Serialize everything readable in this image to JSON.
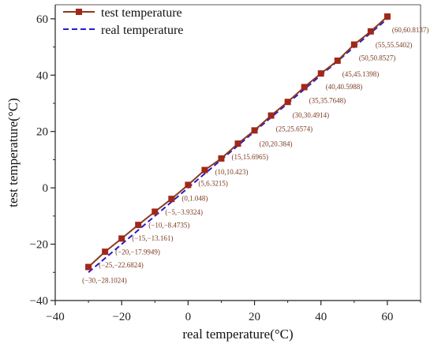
{
  "chart_data": {
    "type": "line",
    "xlabel": "real temperature(°C)",
    "ylabel": "test temperature(°C)",
    "xlim": [
      -40,
      70
    ],
    "ylim": [
      -40,
      65
    ],
    "xticks": [
      -40,
      -20,
      0,
      20,
      40,
      60
    ],
    "yticks": [
      -40,
      -20,
      0,
      20,
      40,
      60
    ],
    "grid": false,
    "legend_position": "top-left",
    "series": [
      {
        "name": "test temperature",
        "style": "solid-line-square-markers",
        "color": "#8b3a1a",
        "marker_color": "#a02818",
        "x": [
          -30,
          -25,
          -20,
          -15,
          -10,
          -5,
          0,
          5,
          10,
          15,
          20,
          25,
          30,
          35,
          40,
          45,
          50,
          55,
          60
        ],
        "y": [
          -28.1024,
          -22.6824,
          -17.9949,
          -13.161,
          -8.4735,
          -3.9324,
          1.048,
          6.3215,
          10.423,
          15.6965,
          20.384,
          25.6574,
          30.4914,
          35.7648,
          40.5988,
          45.1398,
          50.8527,
          55.5402,
          60.8137
        ]
      },
      {
        "name": "real temperature",
        "style": "dashed-line",
        "color": "#2a1acc",
        "x": [
          -30,
          60
        ],
        "y": [
          -30,
          60
        ]
      }
    ],
    "annotations": [
      "(-30,-28.1024)",
      "(-25,-22.6824)",
      "(-20,-17.9949)",
      "(-15,-13.161)",
      "(-10,-8.4735)",
      "(-5,-3.9324)",
      "(0,1.048)",
      "(5,6.3215)",
      "(10,10.423)",
      "(15,15.6965)",
      "(20,20.384)",
      "(25,25.6574)",
      "(30,30.4914)",
      "(35,35.7648)",
      "(40,40.5988)",
      "(45,45.1398)",
      "(50,50.8527)",
      "(55,55.5402)",
      "(60,60.8137)"
    ]
  }
}
